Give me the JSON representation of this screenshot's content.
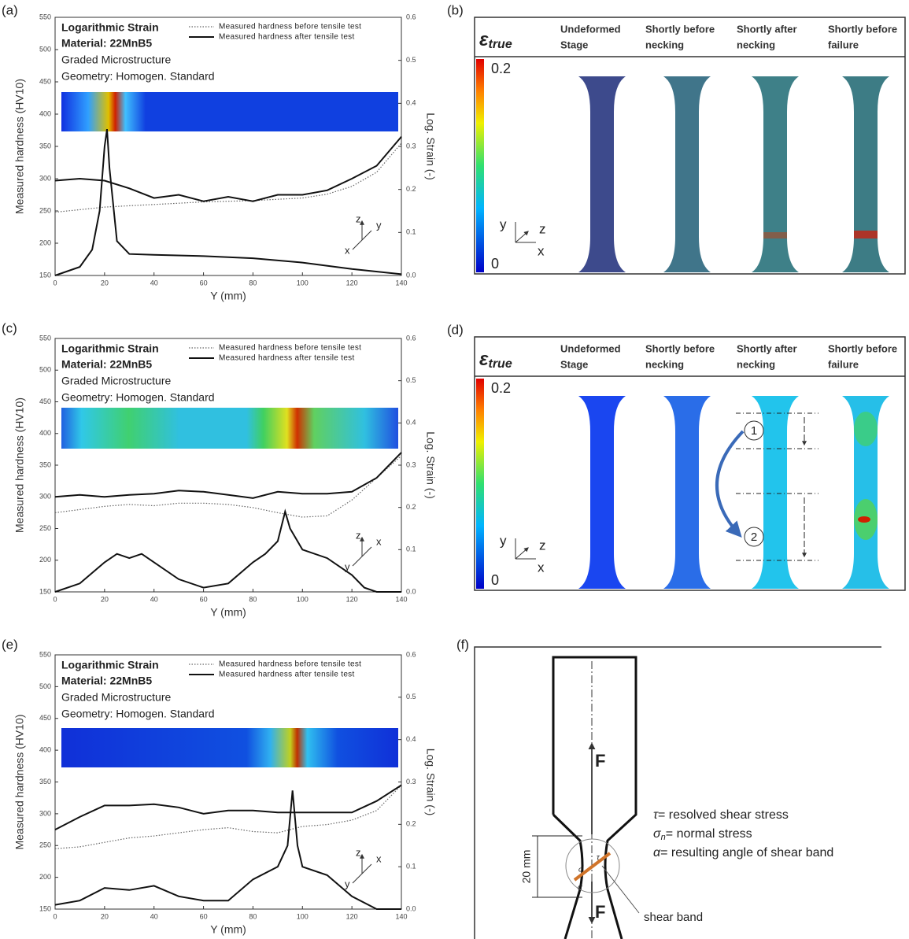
{
  "chart_data": [
    {
      "type": "line",
      "panel": "(a)",
      "title": "Logarithmic Strain",
      "annotations": [
        "Material: 22MnB5",
        "Graded Microstructure",
        "Geometry: Homogen. Standard"
      ],
      "x_label": "Y (mm)",
      "y_label": "Measured hardness (HV10)",
      "y2_label": "Log. Strain (-)",
      "legend": "upper right",
      "triad": [
        "x",
        "z",
        "y"
      ],
      "xlim": [
        0,
        140
      ],
      "xticks": [
        0,
        20,
        40,
        60,
        80,
        100,
        120,
        140
      ],
      "ylim": [
        150,
        550
      ],
      "yticks": [
        150,
        200,
        250,
        300,
        350,
        400,
        450,
        500,
        550
      ],
      "y2lim": [
        0,
        0.6
      ],
      "y2ticks": [
        {
          "value": 0,
          "label": "0.0"
        },
        0.1,
        0.2,
        0.3,
        0.4,
        0.5,
        0.6
      ],
      "series": [
        {
          "name": "Measured hardness before tensile test",
          "color": "#666666",
          "dash": "dotted",
          "x": [
            0,
            10,
            20,
            30,
            40,
            50,
            60,
            70,
            80,
            90,
            100,
            110,
            120,
            130,
            140
          ],
          "values": [
            248,
            252,
            256,
            258,
            260,
            262,
            264,
            265,
            266,
            268,
            270,
            276,
            288,
            310,
            355
          ]
        },
        {
          "name": "Measured hardness after tensile test",
          "color": "#111111",
          "dash": "solid",
          "x": [
            0,
            10,
            20,
            30,
            40,
            50,
            60,
            70,
            80,
            90,
            100,
            110,
            120,
            130,
            140
          ],
          "values": [
            297,
            300,
            297,
            285,
            270,
            275,
            265,
            272,
            265,
            275,
            275,
            282,
            300,
            320,
            365
          ]
        },
        {
          "color": "#111111",
          "dash": "solid",
          "axis": "y2",
          "x": [
            0,
            10,
            15,
            18,
            20,
            21,
            22,
            25,
            30,
            40,
            60,
            80,
            100,
            120,
            140
          ],
          "values": [
            0,
            0.02,
            0.06,
            0.15,
            0.3,
            0.34,
            0.25,
            0.08,
            0.05,
            0.048,
            0.045,
            0.04,
            0.03,
            0.015,
            0.003
          ]
        }
      ]
    },
    {
      "type": "line",
      "panel": "(c)",
      "title": "Logarithmic Strain",
      "annotations": [
        "Material: 22MnB5",
        "Graded Microstructure",
        "Geometry: Homogen. Standard"
      ],
      "x_label": "Y (mm)",
      "y_label": "Measured hardness (HV10)",
      "y2_label": "Log. Strain (-)",
      "legend": "upper right",
      "triad": [
        "y",
        "z",
        "x"
      ],
      "xlim": [
        0,
        140
      ],
      "xticks": [
        0,
        20,
        40,
        60,
        80,
        100,
        120,
        140
      ],
      "ylim": [
        150,
        550
      ],
      "yticks": [
        150,
        200,
        250,
        300,
        350,
        400,
        450,
        500,
        550
      ],
      "y2lim": [
        0,
        0.6
      ],
      "y2ticks": [
        {
          "value": 0,
          "label": "0.0"
        },
        0.1,
        0.2,
        0.3,
        0.4,
        0.5,
        0.6
      ],
      "series": [
        {
          "name": "Measured hardness before tensile test",
          "color": "#666666",
          "dash": "dotted",
          "x": [
            0,
            10,
            20,
            30,
            40,
            50,
            60,
            70,
            80,
            90,
            100,
            110,
            120,
            130,
            140
          ],
          "values": [
            275,
            280,
            285,
            288,
            286,
            290,
            290,
            288,
            283,
            275,
            268,
            270,
            295,
            330,
            365
          ]
        },
        {
          "name": "Measured hardness after tensile test",
          "color": "#111111",
          "dash": "solid",
          "x": [
            0,
            10,
            20,
            30,
            40,
            50,
            60,
            70,
            80,
            90,
            100,
            110,
            120,
            130,
            140
          ],
          "values": [
            300,
            303,
            300,
            303,
            305,
            310,
            308,
            303,
            298,
            308,
            305,
            305,
            308,
            330,
            370
          ]
        },
        {
          "color": "#111111",
          "dash": "solid",
          "axis": "y2",
          "x": [
            0,
            10,
            20,
            25,
            30,
            35,
            40,
            50,
            60,
            70,
            80,
            85,
            90,
            93,
            95,
            100,
            110,
            120,
            125,
            130,
            140
          ],
          "values": [
            0,
            0.02,
            0.07,
            0.09,
            0.08,
            0.09,
            0.07,
            0.03,
            0.01,
            0.02,
            0.07,
            0.09,
            0.12,
            0.19,
            0.15,
            0.1,
            0.08,
            0.04,
            0.01,
            0,
            0
          ]
        }
      ]
    },
    {
      "type": "line",
      "panel": "(e)",
      "title": "Logarithmic Strain",
      "annotations": [
        "Material: 22MnB5",
        "Graded Microstructure",
        "Geometry: Homogen. Standard"
      ],
      "x_label": "Y (mm)",
      "y_label": "Measured hardness (HV10)",
      "y2_label": "Log. Strain (-)",
      "legend": "upper right",
      "triad": [
        "y",
        "z",
        "x"
      ],
      "xlim": [
        0,
        140
      ],
      "xticks": [
        0,
        20,
        40,
        60,
        80,
        100,
        120,
        140
      ],
      "ylim": [
        150,
        550
      ],
      "yticks": [
        150,
        200,
        250,
        300,
        350,
        400,
        450,
        500,
        550
      ],
      "y2lim": [
        0,
        0.6
      ],
      "y2ticks": [
        {
          "value": 0,
          "label": "0.0"
        },
        0.1,
        0.2,
        0.3,
        0.4,
        0.5,
        0.6
      ],
      "series": [
        {
          "name": "Measured hardness before tensile test",
          "color": "#666666",
          "dash": "dotted",
          "x": [
            0,
            10,
            20,
            30,
            40,
            50,
            60,
            70,
            80,
            90,
            100,
            110,
            120,
            130,
            140
          ],
          "values": [
            245,
            248,
            255,
            262,
            265,
            270,
            275,
            278,
            272,
            270,
            280,
            283,
            290,
            305,
            345
          ]
        },
        {
          "name": "Measured hardness after tensile test",
          "color": "#111111",
          "dash": "solid",
          "x": [
            0,
            10,
            20,
            30,
            40,
            50,
            60,
            70,
            80,
            90,
            100,
            110,
            120,
            130,
            140
          ],
          "values": [
            275,
            295,
            313,
            313,
            315,
            310,
            300,
            305,
            305,
            302,
            302,
            302,
            302,
            320,
            345
          ]
        },
        {
          "color": "#111111",
          "dash": "solid",
          "axis": "y2",
          "x": [
            0,
            10,
            20,
            30,
            40,
            50,
            60,
            70,
            80,
            90,
            94,
            96,
            98,
            100,
            110,
            120,
            130,
            140
          ],
          "values": [
            0.01,
            0.02,
            0.05,
            0.045,
            0.055,
            0.03,
            0.02,
            0.02,
            0.07,
            0.1,
            0.15,
            0.28,
            0.15,
            0.1,
            0.08,
            0.03,
            0,
            0
          ]
        }
      ]
    }
  ],
  "panels": [
    {
      "label": "(b)",
      "symbol": "ε",
      "subscript": "true",
      "scale_max": "0.2",
      "scale_min": "0",
      "axes": [
        "y",
        "z",
        "x"
      ],
      "stages": [
        [
          "Undeformed",
          "Stage"
        ],
        [
          "Shortly before",
          "necking"
        ],
        [
          "Shortly after",
          "necking"
        ],
        [
          "Shortly before",
          "failure"
        ]
      ]
    },
    {
      "label": "(d)",
      "symbol": "ε",
      "subscript": "true",
      "scale_max": "0.2",
      "scale_min": "0",
      "axes": [
        "y",
        "z",
        "x"
      ],
      "stages": [
        [
          "Undeformed",
          "Stage"
        ],
        [
          "Shortly before",
          "necking"
        ],
        [
          "Shortly after",
          "necking"
        ],
        [
          "Shortly before",
          "failure"
        ]
      ],
      "markers": [
        "1",
        "2"
      ]
    },
    {
      "label": "(f)",
      "force": "F",
      "dimension": "20 mm",
      "callout": "shear band",
      "legend": [
        {
          "symbol": "τ",
          "text": "= resolved shear stress"
        },
        {
          "symbol": "σ",
          "sub": "n",
          "text": "= normal stress"
        },
        {
          "symbol": "α",
          "text": "= resulting angle of shear band"
        }
      ]
    }
  ]
}
